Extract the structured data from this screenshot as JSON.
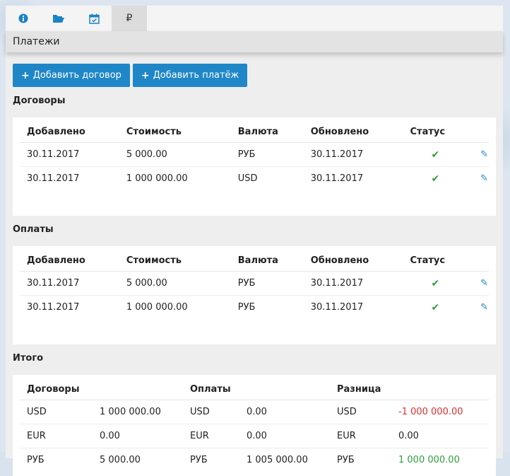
{
  "title": "Платежи",
  "buttons": {
    "add_contract": "Добавить договор",
    "add_payment": "Добавить платёж"
  },
  "tabs": [
    {
      "icon": "info-icon",
      "active": false
    },
    {
      "icon": "folder-open-icon",
      "active": false
    },
    {
      "icon": "calendar-check-icon",
      "active": false
    },
    {
      "icon": "ruble-icon",
      "label": "₽",
      "active": true
    }
  ],
  "contracts": {
    "title": "Договоры",
    "headers": [
      "Добавлено",
      "Стоимость",
      "Валюта",
      "Обновлено",
      "Статус"
    ],
    "rows": [
      {
        "added": "30.11.2017",
        "cost": "5 000.00",
        "currency": "РУБ",
        "updated": "30.11.2017",
        "status": "ok"
      },
      {
        "added": "30.11.2017",
        "cost": "1 000 000.00",
        "currency": "USD",
        "updated": "30.11.2017",
        "status": "ok"
      }
    ]
  },
  "payments": {
    "title": "Оплаты",
    "headers": [
      "Добавлено",
      "Стоимость",
      "Валюта",
      "Обновлено",
      "Статус"
    ],
    "rows": [
      {
        "added": "30.11.2017",
        "cost": "5 000.00",
        "currency": "РУБ",
        "updated": "30.11.2017",
        "status": "ok"
      },
      {
        "added": "30.11.2017",
        "cost": "1 000 000.00",
        "currency": "РУБ",
        "updated": "30.11.2017",
        "status": "ok"
      }
    ]
  },
  "totals": {
    "title": "Итого",
    "headers": [
      "Договоры",
      "Оплаты",
      "Разница"
    ],
    "rows": [
      {
        "c_cur": "USD",
        "c_val": "1 000 000.00",
        "p_cur": "USD",
        "p_val": "0.00",
        "d_cur": "USD",
        "d_val": "-1 000 000.00",
        "d_sign": "neg"
      },
      {
        "c_cur": "EUR",
        "c_val": "0.00",
        "p_cur": "EUR",
        "p_val": "0.00",
        "d_cur": "EUR",
        "d_val": "0.00",
        "d_sign": "zero"
      },
      {
        "c_cur": "РУБ",
        "c_val": "5 000.00",
        "p_cur": "РУБ",
        "p_val": "1 005 000.00",
        "d_cur": "РУБ",
        "d_val": "1 000 000.00",
        "d_sign": "pos"
      }
    ]
  },
  "colors": {
    "accent": "#1f87c7",
    "ok": "#2e9e3e",
    "negative": "#e03030"
  }
}
